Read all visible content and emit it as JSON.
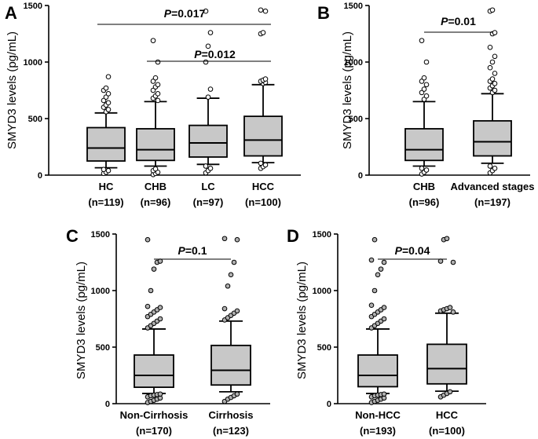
{
  "chart_data": [
    {
      "panel": "A",
      "type": "box",
      "ylabel": "SMYD3 levels (pg/mL)",
      "ylim": [
        0,
        1500
      ],
      "yticks": [
        0,
        500,
        1000,
        1500
      ],
      "categories": [
        "HC",
        "CHB",
        "LC",
        "HCC"
      ],
      "ns": [
        "(n=119)",
        "(n=96)",
        "(n=97)",
        "(n=100)"
      ],
      "boxes": [
        {
          "q1": 125,
          "median": 240,
          "q3": 420,
          "wlo": 65,
          "whi": 550,
          "outliers": [
            15,
            25,
            40,
            50,
            560,
            580,
            600,
            620,
            640,
            660,
            690,
            720,
            750,
            770,
            870
          ]
        },
        {
          "q1": 130,
          "median": 225,
          "q3": 410,
          "wlo": 80,
          "whi": 650,
          "outliers": [
            5,
            15,
            25,
            40,
            55,
            660,
            680,
            700,
            720,
            750,
            780,
            800,
            830,
            860,
            1000,
            1190
          ]
        },
        {
          "q1": 160,
          "median": 285,
          "q3": 440,
          "wlo": 95,
          "whi": 680,
          "outliers": [
            20,
            40,
            60,
            80,
            690,
            760,
            1000,
            1140,
            1260,
            1450
          ]
        },
        {
          "q1": 170,
          "median": 310,
          "q3": 520,
          "wlo": 110,
          "whi": 800,
          "outliers": [
            60,
            75,
            90,
            105,
            810,
            820,
            830,
            840,
            850,
            1250,
            1260,
            1450,
            1460
          ]
        }
      ],
      "comparisons": [
        {
          "from": 0,
          "to": 3,
          "value": 0.017,
          "label_p": "P",
          "label_rest": "=0.017"
        },
        {
          "from": 1,
          "to": 3,
          "value": 0.012,
          "label_p": "P",
          "label_rest": "=0.012"
        }
      ]
    },
    {
      "panel": "B",
      "type": "box",
      "ylabel": "SMYD3 levels (pg/mL)",
      "ylim": [
        0,
        1500
      ],
      "yticks": [
        0,
        500,
        1000,
        1500
      ],
      "categories": [
        "CHB",
        "Advanced stages"
      ],
      "ns": [
        "(n=96)",
        "(n=197)"
      ],
      "boxes": [
        {
          "q1": 130,
          "median": 225,
          "q3": 410,
          "wlo": 80,
          "whi": 650,
          "outliers": [
            10,
            25,
            45,
            60,
            670,
            700,
            730,
            760,
            800,
            830,
            860,
            1000,
            1190
          ]
        },
        {
          "q1": 170,
          "median": 295,
          "q3": 480,
          "wlo": 105,
          "whi": 720,
          "outliers": [
            20,
            40,
            60,
            80,
            730,
            750,
            770,
            790,
            810,
            830,
            850,
            900,
            950,
            1000,
            1050,
            1130,
            1250,
            1260,
            1450,
            1460
          ]
        }
      ],
      "comparisons": [
        {
          "from": 0,
          "to": 1,
          "value": 0.01,
          "label_p": "P",
          "label_rest": "=0.01"
        }
      ]
    },
    {
      "panel": "C",
      "type": "box",
      "ylabel": "SMYD3 levels (pg/mL)",
      "ylim": [
        0,
        1500
      ],
      "yticks": [
        0,
        500,
        1000,
        1500
      ],
      "categories": [
        "Non-Cirrhosis",
        "Cirrhosis"
      ],
      "ns": [
        "(n=170)",
        "(n=123)"
      ],
      "filled_outliers": true,
      "boxes": [
        {
          "q1": 145,
          "median": 250,
          "q3": 430,
          "wlo": 90,
          "whi": 660,
          "outliers": [
            10,
            20,
            30,
            40,
            50,
            60,
            70,
            75,
            80,
            85,
            670,
            690,
            710,
            730,
            750,
            770,
            790,
            810,
            830,
            850,
            860,
            1000,
            1190,
            1250,
            1260,
            1450
          ]
        },
        {
          "q1": 165,
          "median": 295,
          "q3": 515,
          "wlo": 105,
          "whi": 730,
          "outliers": [
            20,
            40,
            55,
            70,
            85,
            740,
            760,
            780,
            800,
            820,
            840,
            1040,
            1140,
            1250,
            1450,
            1460
          ]
        }
      ],
      "comparisons": [
        {
          "from": 0,
          "to": 1,
          "value": 0.1,
          "label_p": "P",
          "label_rest": "=0.1"
        }
      ]
    },
    {
      "panel": "D",
      "type": "box",
      "ylabel": "SMYD3 levels (pg/mL)",
      "ylim": [
        0,
        1500
      ],
      "yticks": [
        0,
        500,
        1000,
        1500
      ],
      "categories": [
        "Non-HCC",
        "HCC"
      ],
      "ns": [
        "(n=193)",
        "(n=100)"
      ],
      "filled_outliers": true,
      "boxes": [
        {
          "q1": 150,
          "median": 250,
          "q3": 430,
          "wlo": 90,
          "whi": 660,
          "outliers": [
            10,
            20,
            30,
            40,
            50,
            60,
            70,
            75,
            80,
            85,
            670,
            690,
            710,
            730,
            750,
            770,
            790,
            810,
            830,
            850,
            870,
            1000,
            1140,
            1190,
            1250,
            1270,
            1450
          ]
        },
        {
          "q1": 175,
          "median": 310,
          "q3": 525,
          "wlo": 110,
          "whi": 800,
          "outliers": [
            60,
            75,
            90,
            105,
            810,
            820,
            830,
            840,
            850,
            1250,
            1260,
            1450,
            1460
          ]
        }
      ],
      "comparisons": [
        {
          "from": 0,
          "to": 1,
          "value": 0.04,
          "label_p": "P",
          "label_rest": "=0.04"
        }
      ]
    }
  ]
}
